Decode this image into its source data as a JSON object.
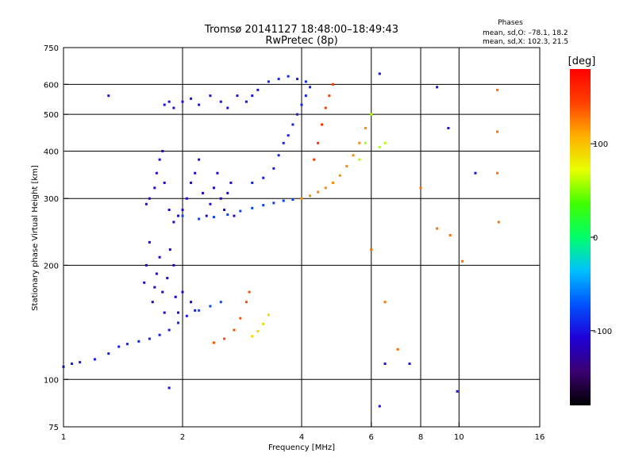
{
  "chart_data": {
    "type": "scatter",
    "title_line1": "Tromsø 20141127 18:48:00–18:49:43",
    "title_line2": "RwPretec (8p)",
    "xlabel": "Frequency [MHz]",
    "ylabel": "Stationary phase Virtual Height [km]",
    "x_scale": "log",
    "y_scale": "log",
    "xlim": [
      1,
      16
    ],
    "ylim": [
      75,
      750
    ],
    "x_ticks": [
      {
        "value": 1,
        "label": "1"
      },
      {
        "value": 2,
        "label": "2"
      },
      {
        "value": 4,
        "label": "4"
      },
      {
        "value": 6,
        "label": "6"
      },
      {
        "value": 8,
        "label": "8"
      },
      {
        "value": 10,
        "label": "10"
      },
      {
        "value": 16,
        "label": "16"
      }
    ],
    "x_gridlines": [
      2,
      4,
      6,
      8,
      10
    ],
    "y_ticks": [
      {
        "value": 75,
        "label": "75"
      },
      {
        "value": 100,
        "label": "100"
      },
      {
        "value": 200,
        "label": "200"
      },
      {
        "value": 300,
        "label": "300"
      },
      {
        "value": 400,
        "label": "400"
      },
      {
        "value": 500,
        "label": "500"
      },
      {
        "value": 600,
        "label": "600"
      },
      {
        "value": 750,
        "label": "750"
      }
    ],
    "y_gridlines": [
      100,
      200,
      300,
      400,
      500,
      600
    ],
    "grid": true,
    "stats": {
      "heading": "Phases",
      "line1": "mean, sd,O: –78.1, 18.2",
      "line2": "mean, sd,X: 102.3, 21.5"
    },
    "colorbar": {
      "label": "[deg]",
      "range": [
        -180,
        180
      ],
      "ticks": [
        {
          "value": 100,
          "label": "100"
        },
        {
          "value": 0,
          "label": "0"
        },
        {
          "value": -100,
          "label": "–100"
        }
      ],
      "stops": [
        "#000000",
        "#3b0070",
        "#1f00d8",
        "#0052ff",
        "#00c0ff",
        "#00ff6a",
        "#40ff00",
        "#e8ff00",
        "#ffb000",
        "#ff4000",
        "#ff0000"
      ]
    },
    "series": [
      {
        "phase": -95,
        "points": [
          [
            1.0,
            108
          ],
          [
            1.05,
            110
          ],
          [
            1.1,
            111
          ],
          [
            1.2,
            113
          ],
          [
            1.3,
            117
          ],
          [
            1.38,
            122
          ],
          [
            1.45,
            124
          ],
          [
            1.55,
            126
          ],
          [
            1.65,
            128
          ],
          [
            1.75,
            131
          ],
          [
            1.85,
            135
          ],
          [
            1.95,
            141
          ],
          [
            2.05,
            147
          ],
          [
            2.15,
            152
          ]
        ]
      },
      {
        "phase": -75,
        "points": [
          [
            2.2,
            152
          ],
          [
            2.35,
            156
          ],
          [
            2.5,
            160
          ]
        ]
      },
      {
        "phase": -105,
        "points": [
          [
            1.62,
            290
          ],
          [
            1.65,
            300
          ],
          [
            1.7,
            320
          ],
          [
            1.72,
            350
          ],
          [
            1.75,
            380
          ],
          [
            1.78,
            400
          ],
          [
            1.8,
            330
          ],
          [
            1.85,
            280
          ],
          [
            1.9,
            260
          ],
          [
            1.95,
            270
          ],
          [
            2.0,
            280
          ],
          [
            2.05,
            300
          ],
          [
            2.1,
            330
          ],
          [
            2.15,
            350
          ],
          [
            2.2,
            380
          ],
          [
            2.25,
            310
          ],
          [
            2.3,
            270
          ],
          [
            2.35,
            290
          ],
          [
            2.4,
            320
          ],
          [
            2.45,
            350
          ],
          [
            2.5,
            300
          ],
          [
            2.55,
            280
          ],
          [
            2.6,
            310
          ],
          [
            2.65,
            330
          ],
          [
            2.7,
            270
          ]
        ]
      },
      {
        "phase": -110,
        "points": [
          [
            1.6,
            180
          ],
          [
            1.62,
            200
          ],
          [
            1.65,
            230
          ],
          [
            1.68,
            160
          ],
          [
            1.7,
            175
          ],
          [
            1.72,
            190
          ],
          [
            1.75,
            210
          ],
          [
            1.78,
            170
          ],
          [
            1.8,
            150
          ],
          [
            1.83,
            185
          ],
          [
            1.86,
            220
          ],
          [
            1.9,
            200
          ],
          [
            1.92,
            165
          ],
          [
            1.95,
            150
          ],
          [
            2.0,
            170
          ],
          [
            2.1,
            160
          ]
        ]
      },
      {
        "phase": -100,
        "points": [
          [
            1.8,
            530
          ],
          [
            1.85,
            540
          ],
          [
            1.9,
            520
          ],
          [
            2.0,
            540
          ],
          [
            2.1,
            550
          ],
          [
            2.2,
            530
          ],
          [
            2.35,
            560
          ],
          [
            2.5,
            540
          ],
          [
            2.6,
            520
          ],
          [
            2.75,
            560
          ],
          [
            2.9,
            540
          ],
          [
            3.0,
            560
          ],
          [
            3.1,
            580
          ]
        ]
      },
      {
        "phase": -90,
        "points": [
          [
            3.3,
            610
          ],
          [
            3.5,
            620
          ],
          [
            3.7,
            630
          ],
          [
            3.9,
            620
          ],
          [
            4.1,
            610
          ]
        ]
      },
      {
        "phase": -80,
        "points": [
          [
            2.0,
            270
          ],
          [
            2.2,
            265
          ],
          [
            2.4,
            268
          ],
          [
            2.6,
            272
          ],
          [
            2.8,
            278
          ],
          [
            3.0,
            283
          ],
          [
            3.2,
            288
          ],
          [
            3.4,
            292
          ],
          [
            3.6,
            296
          ],
          [
            3.8,
            298
          ]
        ]
      },
      {
        "phase": -95,
        "points": [
          [
            3.0,
            330
          ],
          [
            3.2,
            340
          ],
          [
            3.4,
            360
          ],
          [
            3.5,
            390
          ],
          [
            3.6,
            420
          ],
          [
            3.7,
            440
          ],
          [
            3.8,
            470
          ],
          [
            3.9,
            500
          ],
          [
            4.0,
            530
          ],
          [
            4.1,
            560
          ],
          [
            4.2,
            590
          ]
        ]
      },
      {
        "phase": 120,
        "points": [
          [
            4.0,
            300
          ],
          [
            4.2,
            305
          ],
          [
            4.4,
            312
          ],
          [
            4.6,
            320
          ],
          [
            4.8,
            330
          ],
          [
            5.0,
            345
          ],
          [
            5.2,
            365
          ],
          [
            5.4,
            390
          ],
          [
            5.6,
            420
          ],
          [
            5.8,
            460
          ]
        ]
      },
      {
        "phase": 150,
        "points": [
          [
            4.3,
            380
          ],
          [
            4.4,
            420
          ],
          [
            4.5,
            470
          ],
          [
            4.6,
            520
          ],
          [
            4.7,
            560
          ],
          [
            4.8,
            600
          ]
        ]
      },
      {
        "phase": 60,
        "points": [
          [
            5.6,
            380
          ],
          [
            5.8,
            420
          ],
          [
            6.0,
            500
          ],
          [
            6.3,
            410
          ],
          [
            6.5,
            420
          ]
        ]
      },
      {
        "phase": 140,
        "points": [
          [
            2.4,
            125
          ],
          [
            2.55,
            128
          ],
          [
            2.7,
            135
          ],
          [
            2.8,
            145
          ],
          [
            2.9,
            160
          ],
          [
            2.95,
            170
          ]
        ]
      },
      {
        "phase": 90,
        "points": [
          [
            3.0,
            130
          ],
          [
            3.1,
            134
          ],
          [
            3.2,
            140
          ],
          [
            3.3,
            148
          ]
        ]
      },
      {
        "phase": 130,
        "points": [
          [
            6.0,
            220
          ],
          [
            6.5,
            160
          ],
          [
            7.0,
            120
          ],
          [
            8.0,
            320
          ],
          [
            8.8,
            250
          ],
          [
            9.5,
            240
          ],
          [
            10.2,
            205
          ],
          [
            12.5,
            580
          ],
          [
            12.5,
            450
          ],
          [
            12.5,
            350
          ],
          [
            12.6,
            260
          ]
        ]
      },
      {
        "phase": -100,
        "points": [
          [
            1.3,
            560
          ],
          [
            1.85,
            95
          ],
          [
            6.3,
            85
          ],
          [
            6.5,
            110
          ],
          [
            7.5,
            110
          ],
          [
            9.4,
            460
          ],
          [
            9.9,
            93
          ],
          [
            11.0,
            350
          ],
          [
            6.3,
            640
          ],
          [
            8.8,
            590
          ]
        ]
      }
    ]
  }
}
